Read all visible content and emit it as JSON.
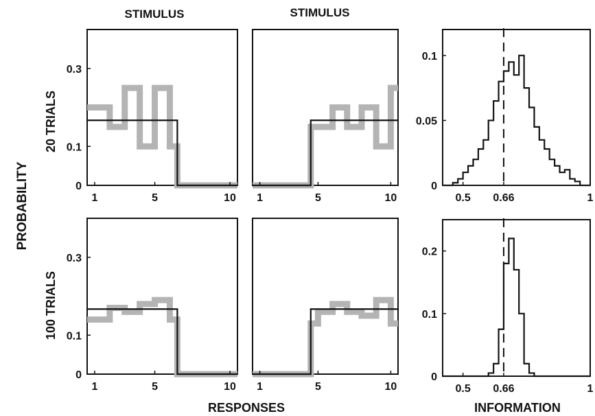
{
  "figure": {
    "col_titles": [
      "STIMULUS",
      "STIMULUS"
    ],
    "row_labels": [
      "20 TRIALS",
      "100 TRIALS"
    ],
    "ylabel": "PROBABILITY",
    "xlabel_responses": "RESPONSES",
    "xlabel_information": "INFORMATION"
  },
  "colors": {
    "black_line": "#111111",
    "gray_line": "#b4b4b4"
  },
  "chart_data": [
    {
      "id": "p-20-s1",
      "type": "line",
      "step": true,
      "xlim": [
        0.5,
        10.5
      ],
      "ylim": [
        0,
        0.4
      ],
      "xticks": [
        1,
        5,
        10
      ],
      "yticks": [
        0,
        0.1,
        0.3
      ],
      "ytick_labels": [
        "0",
        "0.1",
        "0.3"
      ],
      "series": [
        {
          "color": "#111111",
          "x": [
            0.5,
            1,
            2,
            3,
            4,
            5,
            6,
            6.5,
            7,
            8,
            9,
            10,
            10.5
          ],
          "values": [
            0.167,
            0.167,
            0.167,
            0.167,
            0.167,
            0.167,
            0.167,
            0,
            0,
            0,
            0,
            0,
            0
          ]
        },
        {
          "color": "#b4b4b4",
          "x": [
            0.5,
            1,
            2,
            3,
            4,
            5,
            6,
            6.5,
            7,
            8,
            9,
            10,
            10.5
          ],
          "values": [
            0.2,
            0.2,
            0.15,
            0.25,
            0.1,
            0.25,
            0.1,
            0,
            0,
            0,
            0,
            0,
            0
          ]
        }
      ]
    },
    {
      "id": "p-20-s2",
      "type": "line",
      "step": true,
      "xlim": [
        0.5,
        10.5
      ],
      "ylim": [
        0,
        0.4
      ],
      "xticks": [
        1,
        5,
        10
      ],
      "series": [
        {
          "color": "#111111",
          "x": [
            0.5,
            1,
            2,
            3,
            4,
            4.5,
            5,
            6,
            7,
            8,
            9,
            10,
            10.5
          ],
          "values": [
            0,
            0,
            0,
            0,
            0,
            0.167,
            0.167,
            0.167,
            0.167,
            0.167,
            0.167,
            0.167,
            0.167
          ]
        },
        {
          "color": "#b4b4b4",
          "x": [
            0.5,
            1,
            2,
            3,
            4,
            4.5,
            5,
            6,
            7,
            8,
            9,
            10,
            10.5
          ],
          "values": [
            0,
            0,
            0,
            0,
            0,
            0.15,
            0.15,
            0.2,
            0.15,
            0.2,
            0.1,
            0.25,
            0.25
          ]
        }
      ]
    },
    {
      "id": "p-20-info",
      "type": "line",
      "step": true,
      "xlim": [
        0.42,
        1
      ],
      "ylim": [
        0,
        0.12
      ],
      "xticks": [
        0.5,
        0.66,
        1
      ],
      "yticks": [
        0,
        0.05,
        0.1
      ],
      "xtick_labels": [
        "0.5",
        "0.66",
        "1"
      ],
      "ytick_labels": [
        "0",
        "0.05",
        "0.1"
      ],
      "reference_line": 0.66,
      "series": [
        {
          "color": "#111111",
          "x": [
            0.42,
            0.44,
            0.46,
            0.48,
            0.5,
            0.52,
            0.54,
            0.56,
            0.58,
            0.6,
            0.62,
            0.64,
            0.66,
            0.68,
            0.7,
            0.72,
            0.74,
            0.76,
            0.78,
            0.8,
            0.82,
            0.84,
            0.86,
            0.88,
            0.9,
            0.92,
            0.94,
            0.96,
            0.98,
            1.0
          ],
          "values": [
            0,
            0,
            0.002,
            0.005,
            0.01,
            0.015,
            0.02,
            0.028,
            0.035,
            0.05,
            0.065,
            0.08,
            0.088,
            0.095,
            0.085,
            0.1,
            0.075,
            0.06,
            0.045,
            0.035,
            0.028,
            0.02,
            0.015,
            0.01,
            0.012,
            0.005,
            0.003,
            0,
            0,
            0
          ]
        }
      ]
    },
    {
      "id": "p-100-s1",
      "type": "line",
      "step": true,
      "xlim": [
        0.5,
        10.5
      ],
      "ylim": [
        0,
        0.4
      ],
      "xticks": [
        1,
        5,
        10
      ],
      "yticks": [
        0,
        0.1,
        0.3
      ],
      "xtick_labels": [
        "1",
        "5",
        "10"
      ],
      "ytick_labels": [
        "0",
        "0.1",
        "0.3"
      ],
      "series": [
        {
          "color": "#111111",
          "x": [
            0.5,
            1,
            2,
            3,
            4,
            5,
            6,
            6.5,
            7,
            8,
            9,
            10,
            10.5
          ],
          "values": [
            0.167,
            0.167,
            0.167,
            0.167,
            0.167,
            0.167,
            0.167,
            0,
            0,
            0,
            0,
            0,
            0
          ]
        },
        {
          "color": "#b4b4b4",
          "x": [
            0.5,
            1,
            2,
            3,
            4,
            5,
            6,
            6.5,
            7,
            8,
            9,
            10,
            10.5
          ],
          "values": [
            0.14,
            0.14,
            0.17,
            0.16,
            0.18,
            0.19,
            0.14,
            0,
            0,
            0,
            0,
            0,
            0
          ]
        }
      ]
    },
    {
      "id": "p-100-s2",
      "type": "line",
      "step": true,
      "xlim": [
        0.5,
        10.5
      ],
      "ylim": [
        0,
        0.4
      ],
      "xticks": [
        1,
        5,
        10
      ],
      "xtick_labels": [
        "1",
        "5",
        "10"
      ],
      "series": [
        {
          "color": "#111111",
          "x": [
            0.5,
            1,
            2,
            3,
            4,
            4.5,
            5,
            6,
            7,
            8,
            9,
            10,
            10.5
          ],
          "values": [
            0,
            0,
            0,
            0,
            0,
            0.167,
            0.167,
            0.167,
            0.167,
            0.167,
            0.167,
            0.167,
            0.167
          ]
        },
        {
          "color": "#b4b4b4",
          "x": [
            0.5,
            1,
            2,
            3,
            4,
            4.5,
            5,
            6,
            7,
            8,
            9,
            10,
            10.5
          ],
          "values": [
            0,
            0,
            0,
            0,
            0,
            0.13,
            0.16,
            0.18,
            0.16,
            0.15,
            0.19,
            0.13,
            0.13
          ]
        }
      ]
    },
    {
      "id": "p-100-info",
      "type": "line",
      "step": true,
      "xlim": [
        0.42,
        1
      ],
      "ylim": [
        0,
        0.25
      ],
      "xticks": [
        0.5,
        0.66,
        1
      ],
      "yticks": [
        0,
        0.1,
        0.2
      ],
      "xtick_labels": [
        "0.5",
        "0.66",
        "1"
      ],
      "ytick_labels": [
        "0",
        "0.1",
        "0.2"
      ],
      "reference_line": 0.66,
      "series": [
        {
          "color": "#111111",
          "x": [
            0.42,
            0.44,
            0.46,
            0.48,
            0.5,
            0.52,
            0.54,
            0.56,
            0.58,
            0.6,
            0.62,
            0.64,
            0.66,
            0.68,
            0.7,
            0.72,
            0.74,
            0.76,
            0.78,
            0.8,
            0.82,
            0.84,
            0.86,
            0.88,
            0.9,
            0.92,
            0.94,
            0.96,
            0.98,
            1.0
          ],
          "values": [
            0,
            0,
            0,
            0,
            0,
            0,
            0,
            0,
            0,
            0.005,
            0.02,
            0.075,
            0.18,
            0.22,
            0.17,
            0.1,
            0.02,
            0.005,
            0,
            0,
            0,
            0,
            0,
            0,
            0,
            0,
            0,
            0,
            0,
            0
          ]
        }
      ]
    }
  ]
}
